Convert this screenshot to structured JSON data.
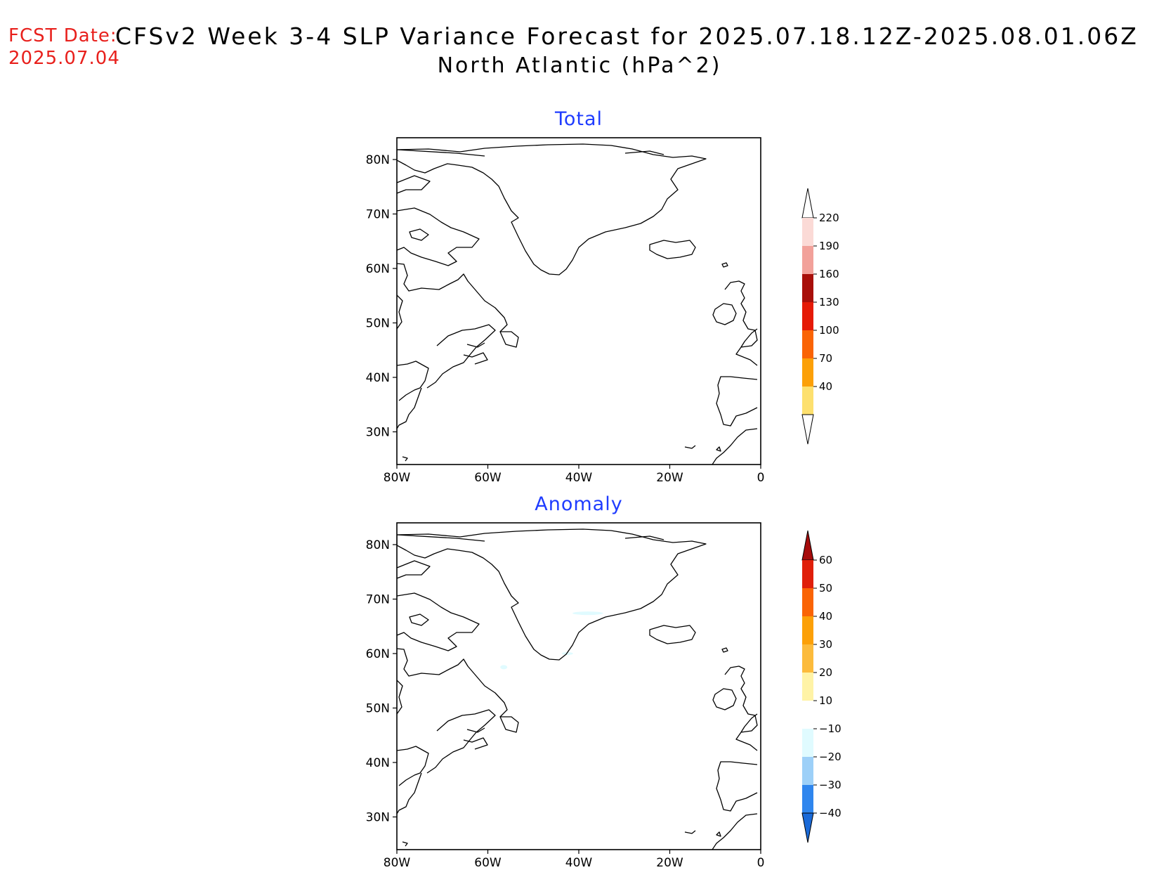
{
  "header": {
    "fcst_label": "FCST Date:",
    "fcst_date": "2025.07.04",
    "title": "CFSv2 Week 3-4 SLP Variance Forecast for 2025.07.18.12Z-2025.08.01.06Z",
    "subtitle": "North Atlantic (hPa^2)"
  },
  "map": {
    "lon_range": [
      -80,
      0
    ],
    "lat_range": [
      24,
      84
    ],
    "lon_ticks": [
      "80W",
      "60W",
      "40W",
      "20W",
      "0"
    ],
    "lat_ticks": [
      "80N",
      "70N",
      "60N",
      "50N",
      "40N",
      "30N"
    ]
  },
  "panels": [
    {
      "title": "Total",
      "colorbar": {
        "labels": [
          "220",
          "190",
          "160",
          "130",
          "100",
          "70",
          "40"
        ],
        "colors": [
          "#fbdad6",
          "#f2a19a",
          "#a80f0a",
          "#e51a06",
          "#fa6405",
          "#fca008",
          "#fde06e"
        ],
        "extend_top_color": "#ffffff",
        "extend_bottom_color": "#ffffff"
      },
      "shading": []
    },
    {
      "title": "Anomaly",
      "colorbar": {
        "labels": [
          "60",
          "50",
          "40",
          "30",
          "20",
          "10",
          "−10",
          "−20",
          "−30",
          "−40"
        ],
        "colors": [
          "#e01f0a",
          "#fa6405",
          "#fca008",
          "#fcbb3c",
          "#fff3a6",
          "#ffffff",
          "#e0fbff",
          "#9dd0f8",
          "#2f86ee"
        ],
        "extend_top_color": "#a60b0b",
        "extend_bottom_color": "#1a6ad8"
      },
      "shading": [
        "#e0fbff"
      ]
    }
  ]
}
